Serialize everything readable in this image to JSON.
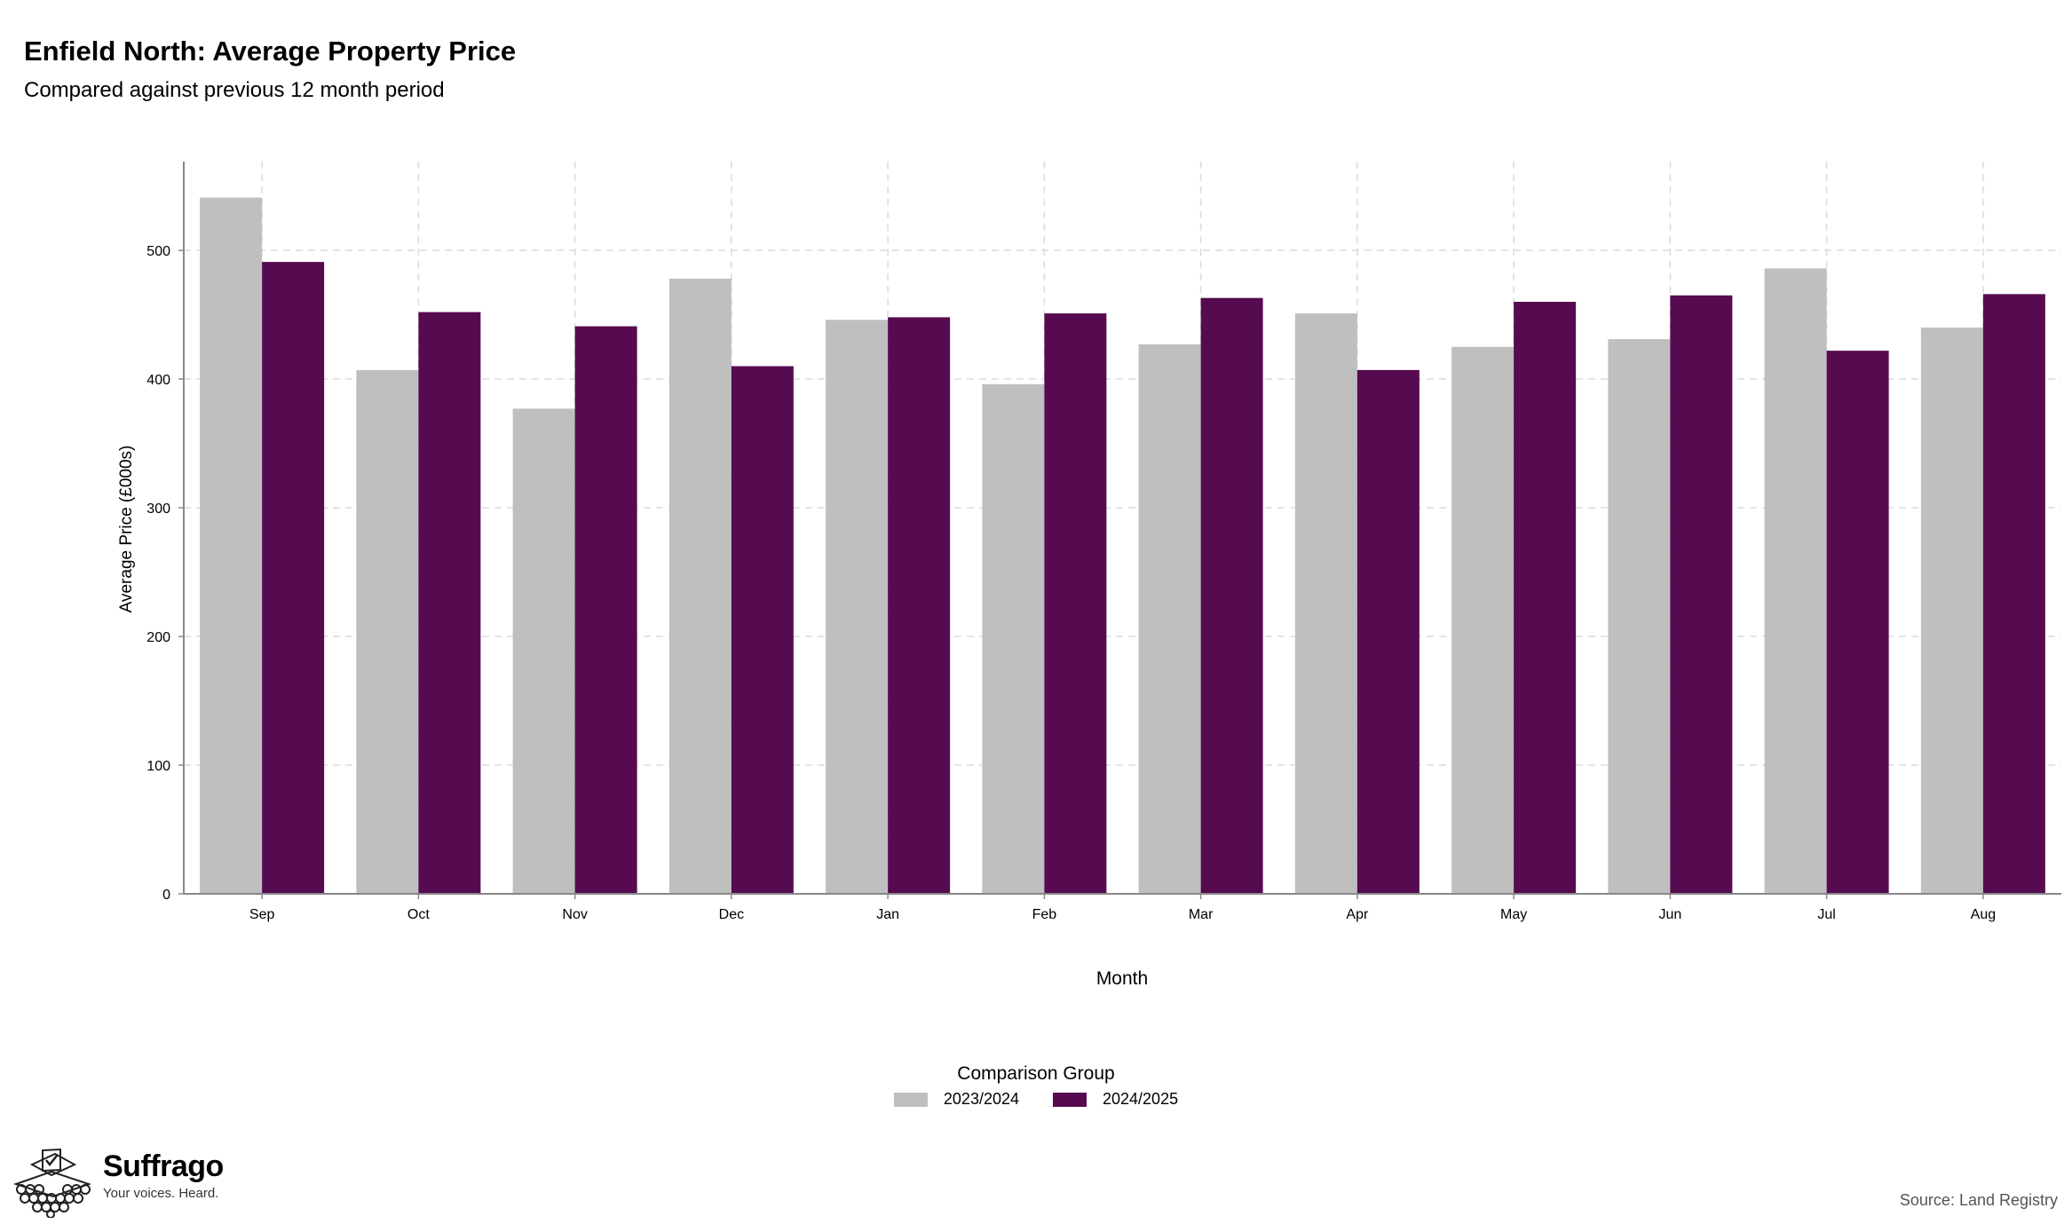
{
  "chart_data": {
    "type": "bar",
    "title": "Enfield North: Average Property Price",
    "subtitle": "Compared against previous 12 month period",
    "xlabel": "Month",
    "ylabel": "Average Price (£000s)",
    "ylim": [
      0,
      569
    ],
    "yticks": [
      0,
      100,
      200,
      300,
      400,
      500
    ],
    "grid": true,
    "legend_position": "bottom",
    "categories": [
      "Sep",
      "Oct",
      "Nov",
      "Dec",
      "Jan",
      "Feb",
      "Mar",
      "Apr",
      "May",
      "Jun",
      "Jul",
      "Aug"
    ],
    "series": [
      {
        "name": "2023/2024",
        "color": "#bfbfbf",
        "values": [
          541,
          407,
          377,
          478,
          446,
          396,
          427,
          451,
          425,
          431,
          486,
          440
        ]
      },
      {
        "name": "2024/2025",
        "color": "#560b50",
        "values": [
          491,
          452,
          441,
          410,
          448,
          451,
          463,
          407,
          460,
          465,
          422,
          466
        ]
      }
    ]
  },
  "legend": {
    "title": "Comparison Group"
  },
  "branding": {
    "name": "Suffrago",
    "tagline": "Your voices. Heard.",
    "logo_icon": "ballot-box-icon"
  },
  "source": "Source: Land Registry"
}
